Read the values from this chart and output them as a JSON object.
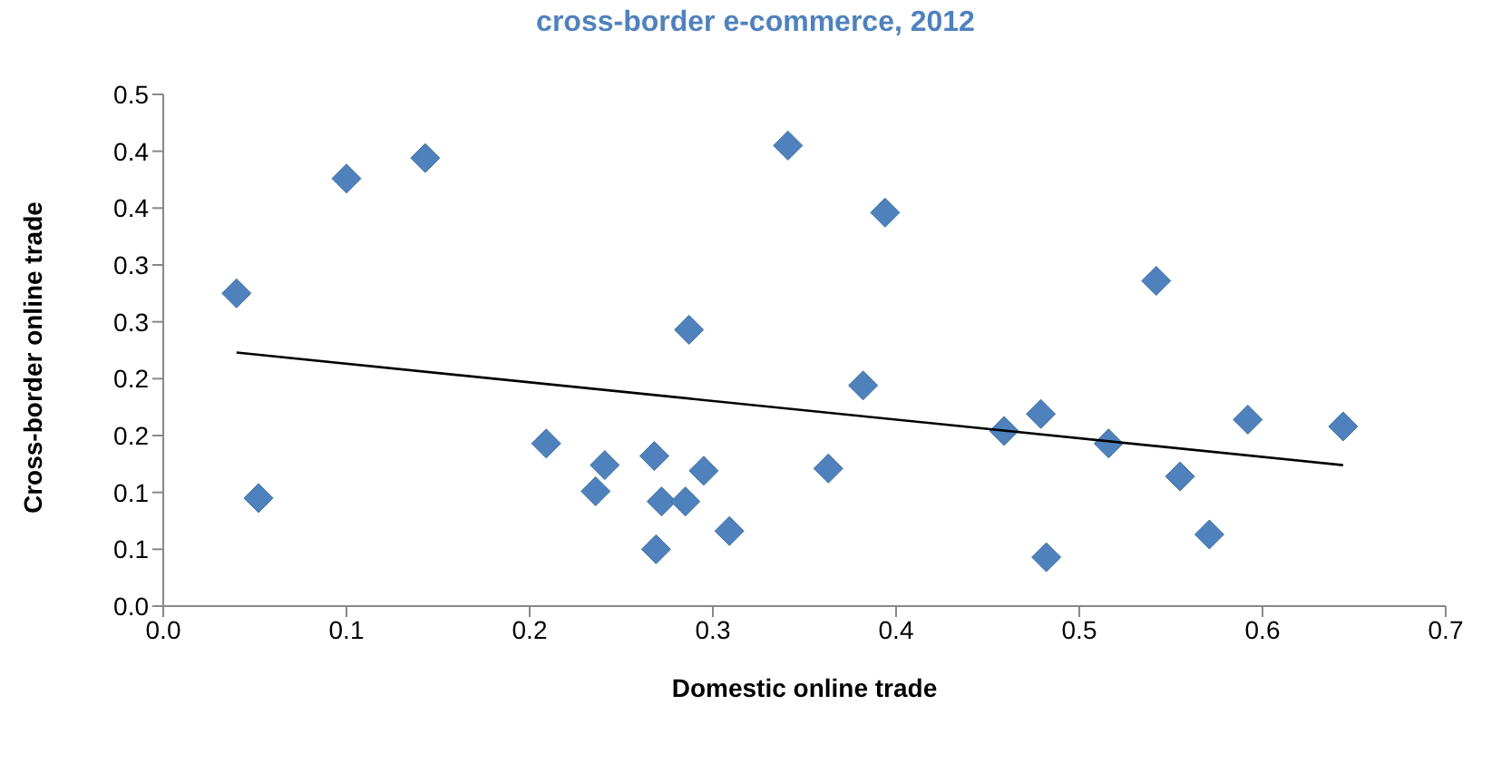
{
  "chart_data": {
    "type": "scatter",
    "title": "cross-border e-commerce, 2012",
    "xlabel": "Domestic online trade",
    "ylabel": "Cross-border online trade",
    "xlim": [
      0,
      0.7
    ],
    "xticks": [
      {
        "value": 0,
        "label": "0.0"
      },
      {
        "value": 0.1,
        "label": "0.1"
      },
      {
        "value": 0.2,
        "label": "0.2"
      },
      {
        "value": 0.3,
        "label": "0.3"
      },
      {
        "value": 0.4,
        "label": "0.4"
      },
      {
        "value": 0.5,
        "label": "0.5"
      },
      {
        "value": 0.6,
        "label": "0.6"
      },
      {
        "value": 0.7,
        "label": "0.7"
      }
    ],
    "ylim": [
      0,
      0.45
    ],
    "yticks": [
      {
        "value": 0,
        "label": "0.0"
      },
      {
        "value": 0.05,
        "label": "0.1"
      },
      {
        "value": 0.1,
        "label": "0.1"
      },
      {
        "value": 0.15,
        "label": "0.2"
      },
      {
        "value": 0.2,
        "label": "0.2"
      },
      {
        "value": 0.25,
        "label": "0.3"
      },
      {
        "value": 0.3,
        "label": "0.3"
      },
      {
        "value": 0.35,
        "label": "0.4"
      },
      {
        "value": 0.4,
        "label": "0.4"
      },
      {
        "value": 0.45,
        "label": "0.5"
      }
    ],
    "grid": false,
    "legend": false,
    "marker": "diamond",
    "series": [
      {
        "type": "scatter",
        "color": "#4f81bd",
        "x": [
          0.04,
          0.1,
          0.143,
          0.052,
          0.209,
          0.236,
          0.241,
          0.268,
          0.269,
          0.272,
          0.285,
          0.295,
          0.309,
          0.287,
          0.341,
          0.363,
          0.382,
          0.394,
          0.459,
          0.479,
          0.482,
          0.516,
          0.542,
          0.555,
          0.571,
          0.592,
          0.644
        ],
        "values": [
          0.275,
          0.376,
          0.394,
          0.095,
          0.143,
          0.101,
          0.124,
          0.132,
          0.05,
          0.092,
          0.092,
          0.119,
          0.066,
          0.243,
          0.405,
          0.121,
          0.194,
          0.346,
          0.154,
          0.169,
          0.043,
          0.143,
          0.286,
          0.114,
          0.063,
          0.164,
          0.158
        ]
      },
      {
        "type": "line",
        "color": "#000000",
        "marker": "none",
        "x": [
          0.04,
          0.644
        ],
        "values": [
          0.223,
          0.124
        ]
      }
    ]
  }
}
